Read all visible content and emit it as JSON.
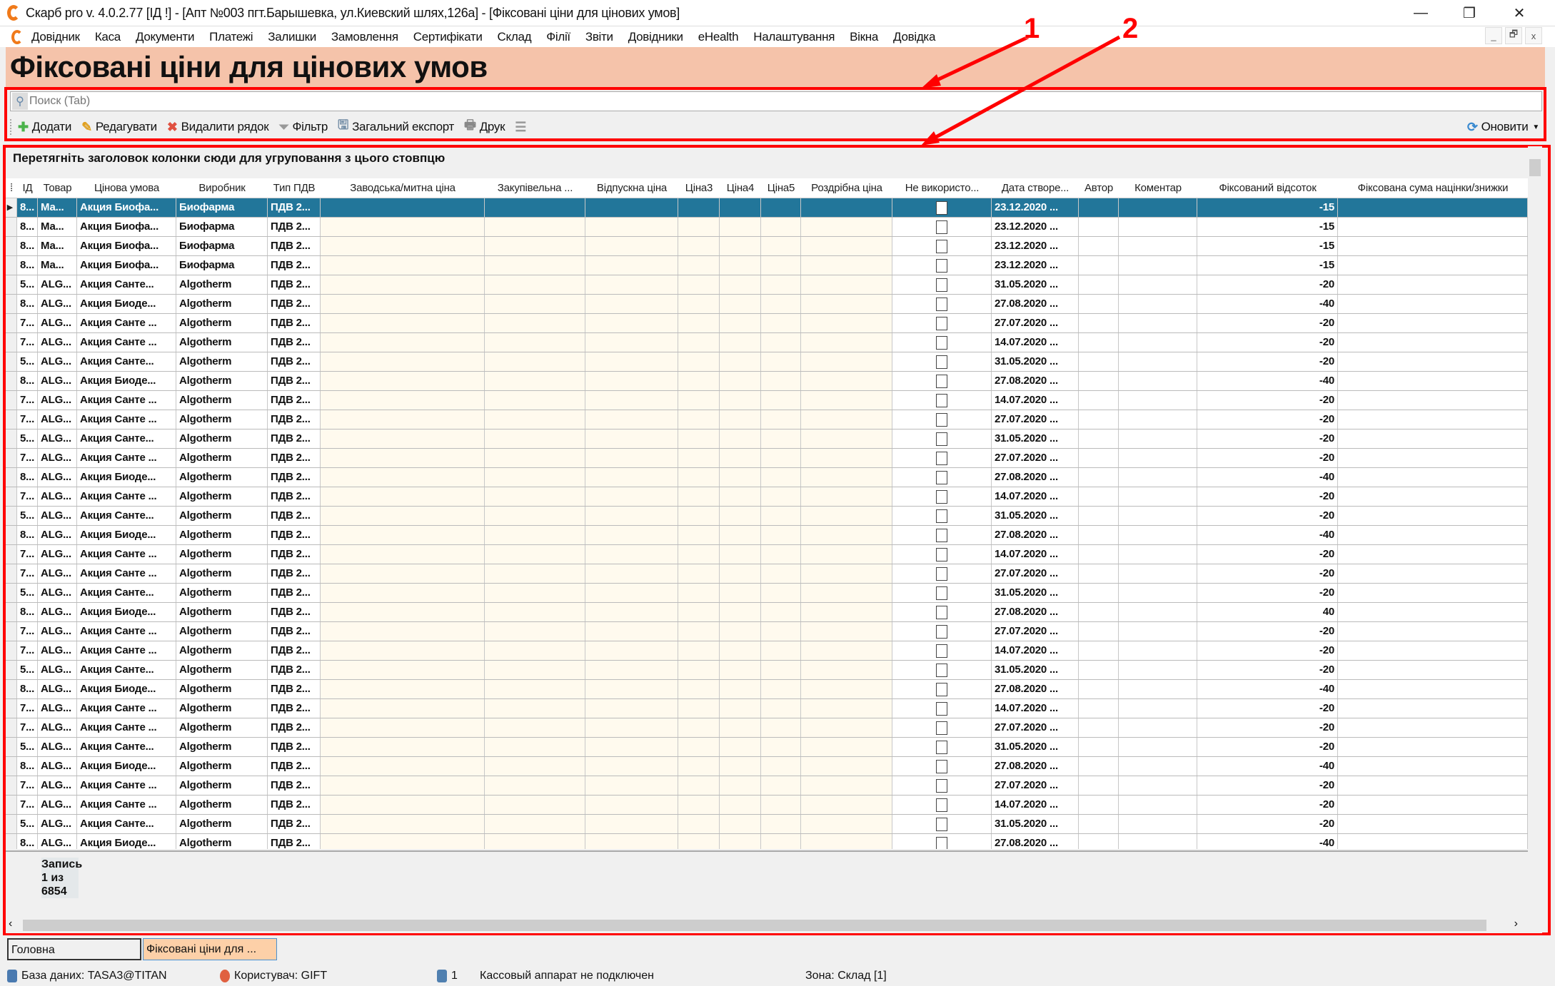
{
  "window": {
    "title": "Скарб pro v. 4.0.2.77 [ІД       !] - [Апт №003 пгт.Барышевка, ул.Киевский шлях,126а] - [Фіксовані ціни для цінових умов]",
    "minimize": "—",
    "restore": "❐",
    "close": "✕"
  },
  "menu": [
    "Довідник",
    "Каса",
    "Документи",
    "Платежі",
    "Залишки",
    "Замовлення",
    "Сертифікати",
    "Склад",
    "Філії",
    "Звіти",
    "Довідники",
    "eHealth",
    "Налаштування",
    "Вікна",
    "Довідка"
  ],
  "mdi": {
    "minimize": "_",
    "restore": "🗗",
    "close": "x"
  },
  "page_title": "Фіксовані ціни для цінових умов",
  "search": {
    "placeholder": "Поиск (Tab)",
    "value": ""
  },
  "toolbar": {
    "add": "Додати",
    "edit": "Редагувати",
    "delete": "Видалити рядок",
    "filter": "Фільтр",
    "export": "Загальний експорт",
    "print": "Друк",
    "refresh": "Оновити"
  },
  "group_panel": "Перетягніть заголовок колонки сюди для угруповання з цього стовпцю",
  "columns": [
    "ІД",
    "Товар",
    "Цінова умова",
    "Виробник",
    "Тип ПДВ",
    "Заводська/митна ціна",
    "Закупівельна ...",
    "Відпускна ціна",
    "Ціна3",
    "Ціна4",
    "Ціна5",
    "Роздрібна ціна",
    "Не використо...",
    "Дата створе...",
    "Автор",
    "Коментар",
    "Фіксований відсоток",
    "Фіксована сума націнки/знижки"
  ],
  "rows": [
    [
      "8...",
      "Ма...",
      "Акция Биофа...",
      "Биофарма",
      "ПДВ 2...",
      "23.12.2020 ...",
      "-15"
    ],
    [
      "8...",
      "Ма...",
      "Акция Биофа...",
      "Биофарма",
      "ПДВ 2...",
      "23.12.2020 ...",
      "-15"
    ],
    [
      "8...",
      "Ма...",
      "Акция Биофа...",
      "Биофарма",
      "ПДВ 2...",
      "23.12.2020 ...",
      "-15"
    ],
    [
      "8...",
      "Ма...",
      "Акция Биофа...",
      "Биофарма",
      "ПДВ 2...",
      "23.12.2020 ...",
      "-15"
    ],
    [
      "5...",
      "ALG...",
      "Акция Санте...",
      "Algotherm",
      "ПДВ 2...",
      "31.05.2020 ...",
      "-20"
    ],
    [
      "8...",
      "ALG...",
      "Акция Биоде...",
      "Algotherm",
      "ПДВ 2...",
      "27.08.2020 ...",
      "-40"
    ],
    [
      "7...",
      "ALG...",
      "Акция Санте ...",
      "Algotherm",
      "ПДВ 2...",
      "27.07.2020 ...",
      "-20"
    ],
    [
      "7...",
      "ALG...",
      "Акция Санте ...",
      "Algotherm",
      "ПДВ 2...",
      "14.07.2020 ...",
      "-20"
    ],
    [
      "5...",
      "ALG...",
      "Акция Санте...",
      "Algotherm",
      "ПДВ 2...",
      "31.05.2020 ...",
      "-20"
    ],
    [
      "8...",
      "ALG...",
      "Акция Биоде...",
      "Algotherm",
      "ПДВ 2...",
      "27.08.2020 ...",
      "-40"
    ],
    [
      "7...",
      "ALG...",
      "Акция Санте ...",
      "Algotherm",
      "ПДВ 2...",
      "14.07.2020 ...",
      "-20"
    ],
    [
      "7...",
      "ALG...",
      "Акция Санте ...",
      "Algotherm",
      "ПДВ 2...",
      "27.07.2020 ...",
      "-20"
    ],
    [
      "5...",
      "ALG...",
      "Акция Санте...",
      "Algotherm",
      "ПДВ 2...",
      "31.05.2020 ...",
      "-20"
    ],
    [
      "7...",
      "ALG...",
      "Акция Санте ...",
      "Algotherm",
      "ПДВ 2...",
      "27.07.2020 ...",
      "-20"
    ],
    [
      "8...",
      "ALG...",
      "Акция Биоде...",
      "Algotherm",
      "ПДВ 2...",
      "27.08.2020 ...",
      "-40"
    ],
    [
      "7...",
      "ALG...",
      "Акция Санте ...",
      "Algotherm",
      "ПДВ 2...",
      "14.07.2020 ...",
      "-20"
    ],
    [
      "5...",
      "ALG...",
      "Акция Санте...",
      "Algotherm",
      "ПДВ 2...",
      "31.05.2020 ...",
      "-20"
    ],
    [
      "8...",
      "ALG...",
      "Акция Биоде...",
      "Algotherm",
      "ПДВ 2...",
      "27.08.2020 ...",
      "-40"
    ],
    [
      "7...",
      "ALG...",
      "Акция Санте ...",
      "Algotherm",
      "ПДВ 2...",
      "14.07.2020 ...",
      "-20"
    ],
    [
      "7...",
      "ALG...",
      "Акция Санте ...",
      "Algotherm",
      "ПДВ 2...",
      "27.07.2020 ...",
      "-20"
    ],
    [
      "5...",
      "ALG...",
      "Акция Санте...",
      "Algotherm",
      "ПДВ 2...",
      "31.05.2020 ...",
      "-20"
    ],
    [
      "8...",
      "ALG...",
      "Акция Биоде...",
      "Algotherm",
      "ПДВ 2...",
      "27.08.2020 ...",
      "40"
    ],
    [
      "7...",
      "ALG...",
      "Акция Санте ...",
      "Algotherm",
      "ПДВ 2...",
      "27.07.2020 ...",
      "-20"
    ],
    [
      "7...",
      "ALG...",
      "Акция Санте ...",
      "Algotherm",
      "ПДВ 2...",
      "14.07.2020 ...",
      "-20"
    ],
    [
      "5...",
      "ALG...",
      "Акция Санте...",
      "Algotherm",
      "ПДВ 2...",
      "31.05.2020 ...",
      "-20"
    ],
    [
      "8...",
      "ALG...",
      "Акция Биоде...",
      "Algotherm",
      "ПДВ 2...",
      "27.08.2020 ...",
      "-40"
    ],
    [
      "7...",
      "ALG...",
      "Акция Санте ...",
      "Algotherm",
      "ПДВ 2...",
      "14.07.2020 ...",
      "-20"
    ],
    [
      "7...",
      "ALG...",
      "Акция Санте ...",
      "Algotherm",
      "ПДВ 2...",
      "27.07.2020 ...",
      "-20"
    ],
    [
      "5...",
      "ALG...",
      "Акция Санте...",
      "Algotherm",
      "ПДВ 2...",
      "31.05.2020 ...",
      "-20"
    ],
    [
      "8...",
      "ALG...",
      "Акция Биоде...",
      "Algotherm",
      "ПДВ 2...",
      "27.08.2020 ...",
      "-40"
    ],
    [
      "7...",
      "ALG...",
      "Акция Санте ...",
      "Algotherm",
      "ПДВ 2...",
      "27.07.2020 ...",
      "-20"
    ],
    [
      "7...",
      "ALG...",
      "Акция Санте ...",
      "Algotherm",
      "ПДВ 2...",
      "14.07.2020 ...",
      "-20"
    ],
    [
      "5...",
      "ALG...",
      "Акция Санте...",
      "Algotherm",
      "ПДВ 2...",
      "31.05.2020 ...",
      "-20"
    ],
    [
      "8...",
      "ALG...",
      "Акция Биоде...",
      "Algotherm",
      "ПДВ 2...",
      "27.08.2020 ...",
      "-40"
    ]
  ],
  "selected_row": 0,
  "footer": {
    "record_count": "Запись 1 из 6854"
  },
  "tabs": [
    {
      "label": "Головна",
      "active": false
    },
    {
      "label": "Фіксовані ціни для  ...",
      "active": true
    }
  ],
  "status": {
    "database": "База даних: TASA3@TITAN",
    "user": "Користувач: GIFT",
    "count": "1",
    "cashbox": "Кассовый аппарат не подключен",
    "zone": "Зона: Склад [1]"
  },
  "annotations": [
    "1",
    "2"
  ],
  "colors": {
    "header_bg": "#f5c3aa",
    "selection": "#22769a",
    "price_bg": "#fffaee",
    "annotation": "#ff0000",
    "active_tab": "#fdd0a8"
  }
}
